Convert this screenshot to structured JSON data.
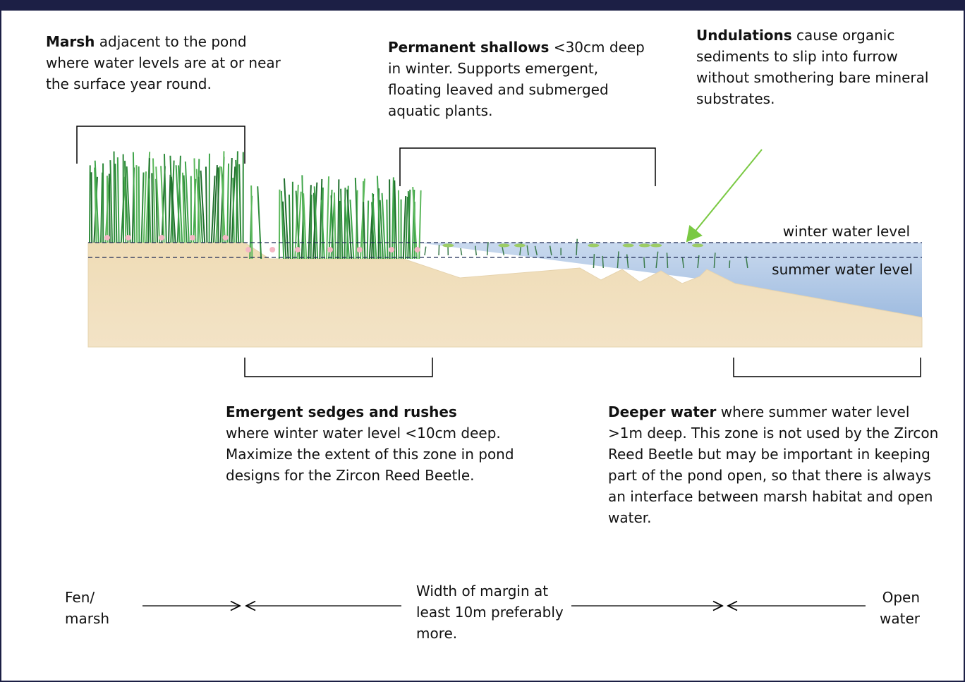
{
  "annotations": {
    "marsh": {
      "title": "Marsh",
      "text": "adjacent to the pond where water levels are at or near the surface year round."
    },
    "shallows": {
      "title": "Permanent shallows",
      "text": "<30cm deep in winter. Supports emergent, floating leaved and submerged aquatic plants."
    },
    "undulations": {
      "title": "Undulations",
      "text": "cause organic sediments to slip into furrow without smothering bare mineral substrates."
    },
    "emergent": {
      "title": "Emergent sedges and rushes",
      "text": "where winter water level <10cm deep. Maximize the extent of this zone in pond designs for the Zircon Reed Beetle."
    },
    "deeper": {
      "title": "Deeper water",
      "text": "where summer water level >1m deep. This zone is not used by the Zircon Reed Beetle but may be important in keeping part of the pond open, so that there is always an interface between marsh habitat and open water."
    }
  },
  "water_levels": {
    "winter": "winter water level",
    "summer": "summer water level"
  },
  "margin": {
    "left": "Fen/ marsh",
    "center": "Width of margin at least 10m preferably more.",
    "right": "Open water"
  }
}
